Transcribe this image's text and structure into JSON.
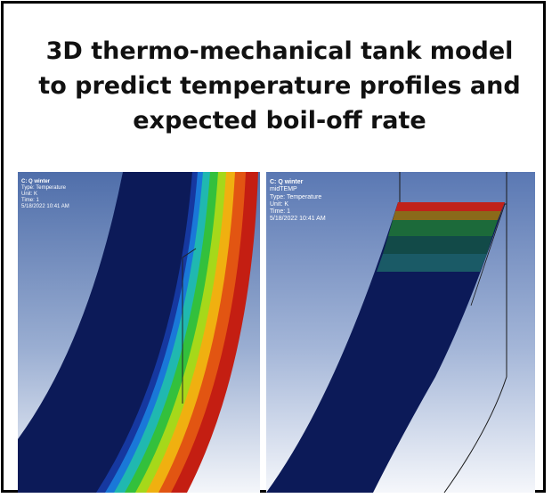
{
  "title": {
    "line1": "3D thermo-mechanical tank model",
    "line2": "to predict temperature profiles and",
    "line3": "expected boil-off rate"
  },
  "left_panel": {
    "name": "C: Q winter",
    "type": "Type: Temperature",
    "unit": "Unit: K",
    "time": "Time: 1",
    "date": "5/18/2022 10:41 AM"
  },
  "right_panel": {
    "name": "C: Q winter",
    "result": "midTEMP",
    "type": "Type: Temperature",
    "unit": "Unit: K",
    "time": "Time: 1",
    "date": "5/18/2022 10:41 AM"
  },
  "colors": {
    "background_top": "#5b79b4",
    "background_bottom": "#ffffff",
    "contour_cold": "#0a1a5a",
    "contour_hot": "#c8160f",
    "annotation_text": "#ffffff"
  }
}
